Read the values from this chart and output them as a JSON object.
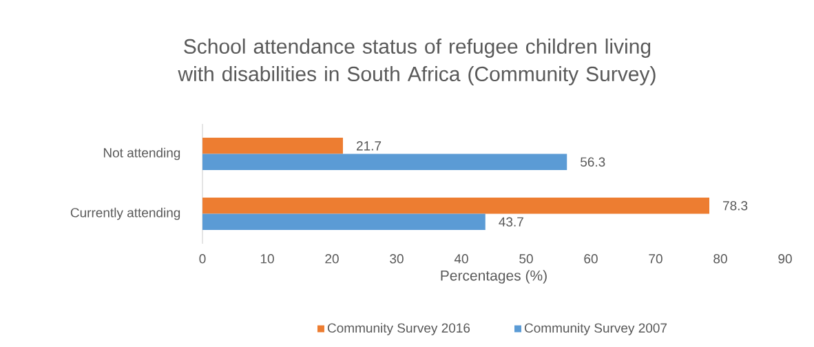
{
  "chart_data": {
    "type": "bar",
    "orientation": "horizontal",
    "title": "School  attendance status  of refugee children living with disabilities in South Africa (Community Survey)",
    "xlabel": "Percentages (%)",
    "categories": [
      "Not attending",
      "Currently attending"
    ],
    "series": [
      {
        "name": "Community Survey 2016",
        "color": "#ed7d31",
        "values": [
          21.7,
          78.3
        ]
      },
      {
        "name": "Community Survey 2007",
        "color": "#5b9bd5",
        "values": [
          56.3,
          43.7
        ]
      }
    ],
    "xlim": [
      0,
      90
    ],
    "xticks": [
      0,
      10,
      20,
      30,
      40,
      50,
      60,
      70,
      80,
      90
    ],
    "data_labels": true,
    "legend": "bottom",
    "grid": false
  }
}
